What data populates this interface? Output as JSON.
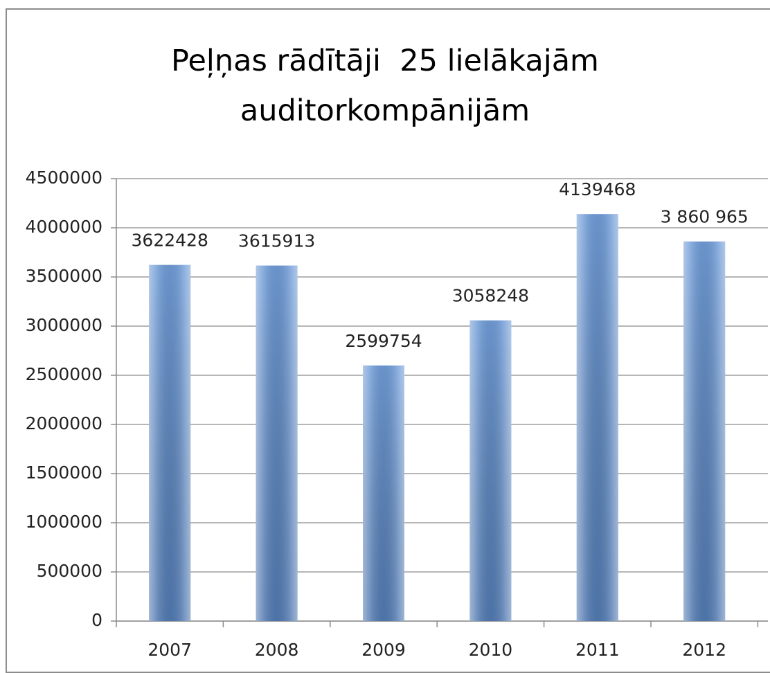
{
  "chart_data": {
    "type": "bar",
    "title": "Peļņas rādītāji  25 lielākajām auditorkompānijām",
    "categories": [
      "2007",
      "2008",
      "2009",
      "2010",
      "2011",
      "2012"
    ],
    "values": [
      3622428,
      3615913,
      2599754,
      3058248,
      4139468,
      3860965
    ],
    "value_labels": [
      "3622428",
      "3615913",
      "2599754",
      "3058248",
      "4139468",
      "3 860 965"
    ],
    "color": "#6f9bd6",
    "ylim": [
      0,
      4500000
    ],
    "yticks": [
      0,
      500000,
      1000000,
      1500000,
      2000000,
      2500000,
      3000000,
      3500000,
      4000000,
      4500000
    ],
    "grid": true
  }
}
